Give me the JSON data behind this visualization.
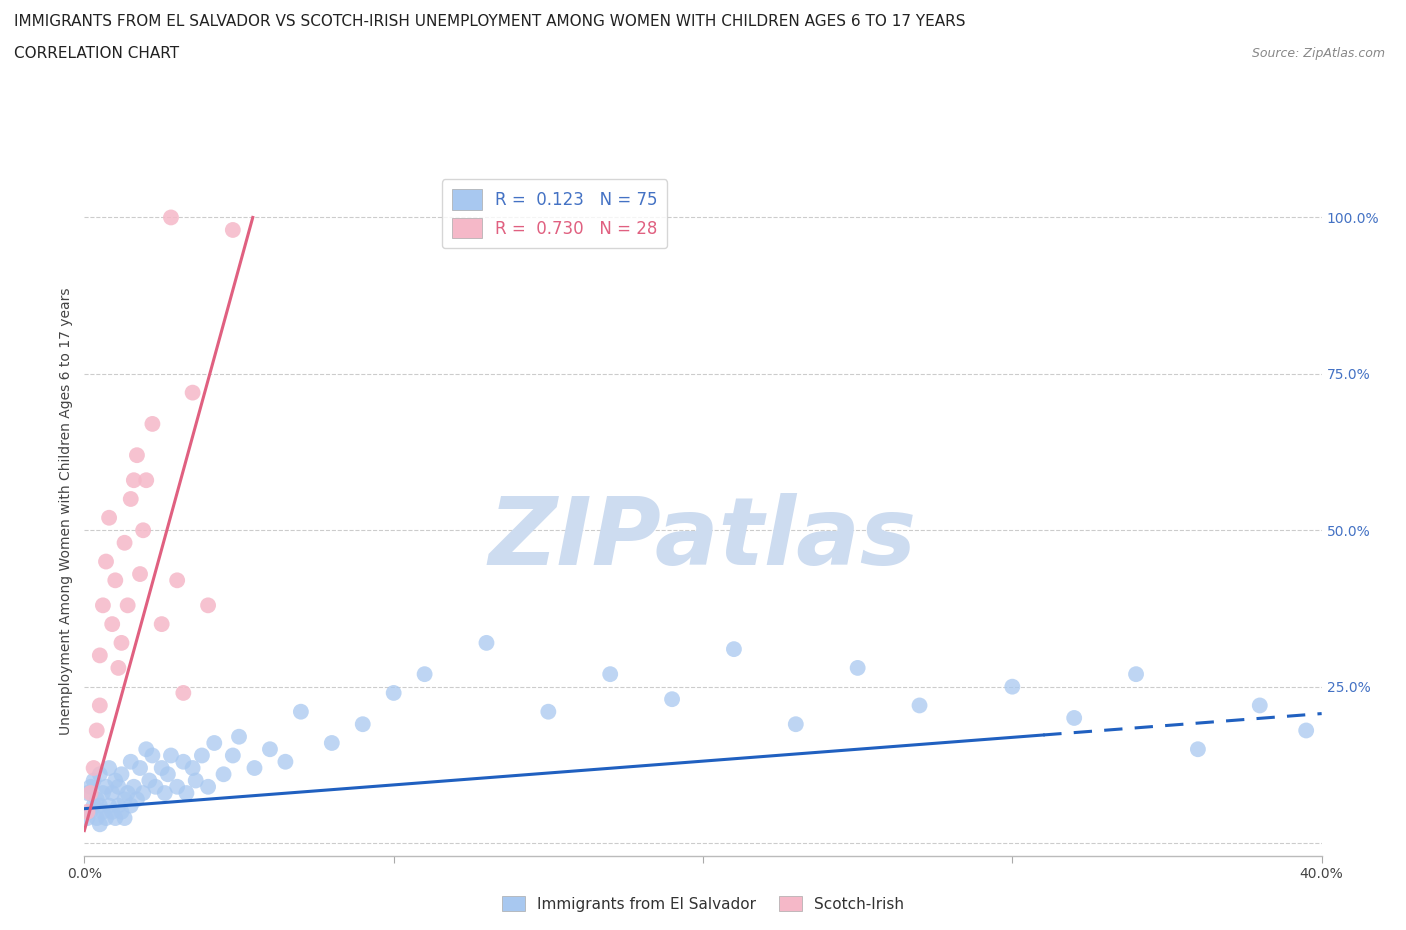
{
  "title_line1": "IMMIGRANTS FROM EL SALVADOR VS SCOTCH-IRISH UNEMPLOYMENT AMONG WOMEN WITH CHILDREN AGES 6 TO 17 YEARS",
  "title_line2": "CORRELATION CHART",
  "source_text": "Source: ZipAtlas.com",
  "xlim": [
    0.0,
    0.4
  ],
  "ylim": [
    -0.02,
    1.08
  ],
  "legend_entries": [
    {
      "label_r": "R = ",
      "label_r_val": "0.123",
      "label_n": "  N = ",
      "label_n_val": "75",
      "color": "#a8c8f0"
    },
    {
      "label_r": "R = ",
      "label_r_val": "0.730",
      "label_n": "  N = ",
      "label_n_val": "28",
      "color": "#f5b8c8"
    }
  ],
  "scatter_blue": {
    "x": [
      0.001,
      0.001,
      0.002,
      0.002,
      0.003,
      0.003,
      0.004,
      0.004,
      0.005,
      0.005,
      0.005,
      0.006,
      0.006,
      0.007,
      0.007,
      0.008,
      0.008,
      0.009,
      0.009,
      0.01,
      0.01,
      0.011,
      0.011,
      0.012,
      0.012,
      0.013,
      0.013,
      0.014,
      0.015,
      0.015,
      0.016,
      0.017,
      0.018,
      0.019,
      0.02,
      0.021,
      0.022,
      0.023,
      0.025,
      0.026,
      0.027,
      0.028,
      0.03,
      0.032,
      0.033,
      0.035,
      0.036,
      0.038,
      0.04,
      0.042,
      0.045,
      0.048,
      0.05,
      0.055,
      0.06,
      0.065,
      0.07,
      0.08,
      0.09,
      0.1,
      0.11,
      0.13,
      0.15,
      0.17,
      0.19,
      0.21,
      0.23,
      0.25,
      0.27,
      0.3,
      0.32,
      0.34,
      0.36,
      0.38,
      0.395
    ],
    "y": [
      0.04,
      0.08,
      0.05,
      0.09,
      0.06,
      0.1,
      0.04,
      0.07,
      0.03,
      0.06,
      0.11,
      0.05,
      0.08,
      0.04,
      0.09,
      0.06,
      0.12,
      0.05,
      0.08,
      0.04,
      0.1,
      0.06,
      0.09,
      0.05,
      0.11,
      0.07,
      0.04,
      0.08,
      0.06,
      0.13,
      0.09,
      0.07,
      0.12,
      0.08,
      0.15,
      0.1,
      0.14,
      0.09,
      0.12,
      0.08,
      0.11,
      0.14,
      0.09,
      0.13,
      0.08,
      0.12,
      0.1,
      0.14,
      0.09,
      0.16,
      0.11,
      0.14,
      0.17,
      0.12,
      0.15,
      0.13,
      0.21,
      0.16,
      0.19,
      0.24,
      0.27,
      0.32,
      0.21,
      0.27,
      0.23,
      0.31,
      0.19,
      0.28,
      0.22,
      0.25,
      0.2,
      0.27,
      0.15,
      0.22,
      0.18
    ],
    "color": "#a8c8f0",
    "alpha": 0.75,
    "size": 130
  },
  "scatter_pink": {
    "x": [
      0.001,
      0.002,
      0.003,
      0.004,
      0.005,
      0.005,
      0.006,
      0.007,
      0.008,
      0.009,
      0.01,
      0.011,
      0.012,
      0.013,
      0.014,
      0.015,
      0.016,
      0.017,
      0.018,
      0.019,
      0.02,
      0.022,
      0.025,
      0.03,
      0.032,
      0.035,
      0.04,
      0.048
    ],
    "y": [
      0.05,
      0.08,
      0.12,
      0.18,
      0.22,
      0.3,
      0.38,
      0.45,
      0.52,
      0.35,
      0.42,
      0.28,
      0.32,
      0.48,
      0.38,
      0.55,
      0.58,
      0.62,
      0.43,
      0.5,
      0.58,
      0.67,
      0.35,
      0.42,
      0.24,
      0.72,
      0.38,
      0.98
    ],
    "color": "#f5b8c8",
    "alpha": 0.85,
    "size": 130
  },
  "scatter_pink_high": {
    "x": [
      0.028
    ],
    "y": [
      1.0
    ],
    "color": "#f5b8c8",
    "alpha": 0.85,
    "size": 130
  },
  "regression_blue": {
    "x_start": 0.0,
    "x_solid_end": 0.31,
    "x_end": 0.4,
    "slope": 0.38,
    "intercept": 0.055,
    "color": "#2060c0",
    "linewidth": 2.2
  },
  "regression_pink": {
    "x_start": 0.0,
    "x_end": 0.4,
    "slope": 18.0,
    "intercept": 0.02,
    "color": "#e06080",
    "linewidth": 2.2
  },
  "watermark_text": "ZIPatlas",
  "watermark_color": "#cddcf0",
  "background_color": "#ffffff",
  "grid_color": "#cccccc",
  "title_fontsize": 11,
  "subtitle_fontsize": 11,
  "tick_fontsize": 10,
  "source_fontsize": 9,
  "ylabel_text": "Unemployment Among Women with Children Ages 6 to 17 years",
  "bottom_legend": [
    {
      "label": "Immigrants from El Salvador",
      "color": "#a8c8f0"
    },
    {
      "label": "Scotch-Irish",
      "color": "#f5b8c8"
    }
  ]
}
